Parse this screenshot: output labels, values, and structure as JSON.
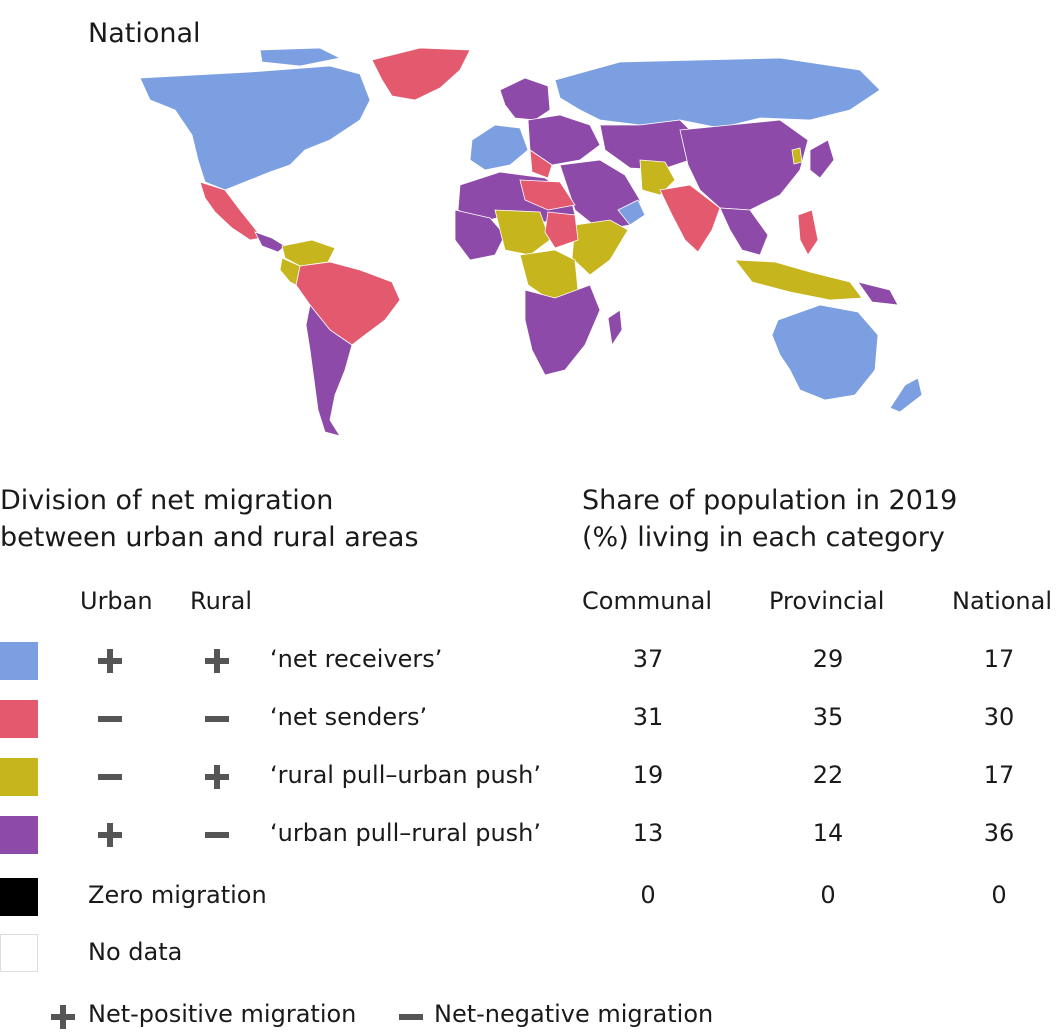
{
  "map": {
    "title": "National"
  },
  "legend": {
    "heading_line1": "Division of net migration",
    "heading_line2": "between urban and rural areas",
    "col_urban": "Urban",
    "col_rural": "Rural",
    "rows": [
      {
        "urban": "plus",
        "rural": "plus",
        "label": "‘net receivers’",
        "color": "#7B9FE0"
      },
      {
        "urban": "minus",
        "rural": "minus",
        "label": "‘net senders’",
        "color": "#E35A6E"
      },
      {
        "urban": "minus",
        "rural": "plus",
        "label": "‘rural pull–urban push’",
        "color": "#C7B51E"
      },
      {
        "urban": "plus",
        "rural": "minus",
        "label": "‘urban pull–rural push’",
        "color": "#8E4AA8"
      }
    ],
    "zero": {
      "label": "Zero migration",
      "color": "#000000"
    },
    "nodata": {
      "label": "No data",
      "color": "#ffffff"
    }
  },
  "share": {
    "heading_line1": "Share of population in 2019",
    "heading_line2": "(%) living in each category",
    "columns": [
      "Communal",
      "Provincial",
      "National"
    ],
    "rows": [
      [
        "37",
        "29",
        "17"
      ],
      [
        "31",
        "35",
        "30"
      ],
      [
        "19",
        "22",
        "17"
      ],
      [
        "13",
        "14",
        "36"
      ],
      [
        "0",
        "0",
        "0"
      ]
    ]
  },
  "footnote": {
    "plus_label": "Net-positive migration",
    "minus_label": "Net-negative migration",
    "symbol_color": "#555555"
  }
}
